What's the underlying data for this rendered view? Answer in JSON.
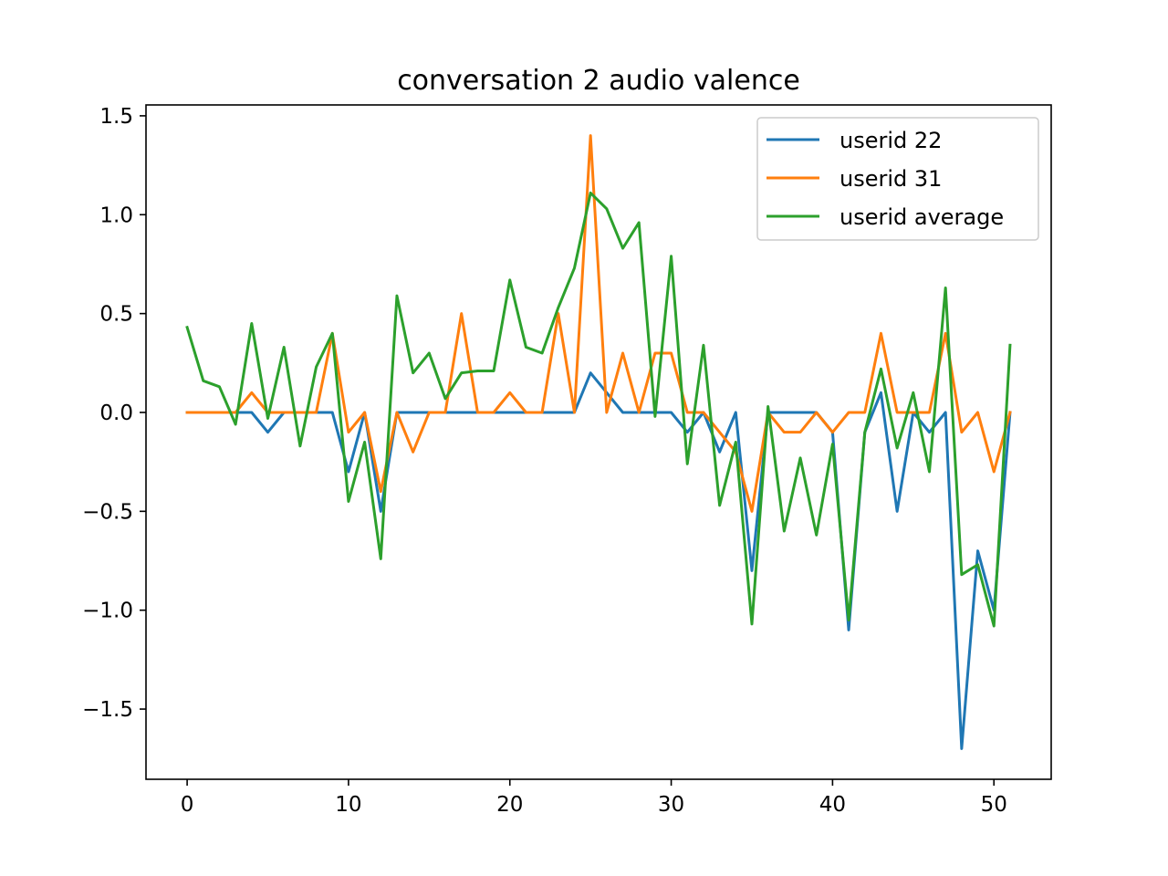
{
  "chart_data": {
    "type": "line",
    "title": "conversation 2 audio valence",
    "xlabel": "",
    "ylabel": "",
    "xlim": [
      -2.55,
      53.55
    ],
    "ylim": [
      -1.855,
      1.555
    ],
    "xticks": [
      0,
      10,
      20,
      30,
      40,
      50
    ],
    "yticks": [
      -1.5,
      -1.0,
      -0.5,
      0.0,
      0.5,
      1.0,
      1.5
    ],
    "ytick_labels": [
      "−1.5",
      "−1.0",
      "−0.5",
      "0.0",
      "0.5",
      "1.0",
      "1.5"
    ],
    "grid": false,
    "legend_position": "top-right",
    "x": [
      0,
      1,
      2,
      3,
      4,
      5,
      6,
      7,
      8,
      9,
      10,
      11,
      12,
      13,
      14,
      15,
      16,
      17,
      18,
      19,
      20,
      21,
      22,
      23,
      24,
      25,
      26,
      27,
      28,
      29,
      30,
      31,
      32,
      33,
      34,
      35,
      36,
      37,
      38,
      39,
      40,
      41,
      42,
      43,
      44,
      45,
      46,
      47,
      48,
      49,
      50,
      51
    ],
    "series": [
      {
        "name": "userid 22",
        "color": "#1f77b4",
        "values": [
          0,
          0,
          0,
          0,
          0,
          -0.1,
          0,
          0,
          0,
          0,
          -0.3,
          0,
          -0.5,
          0,
          0,
          0,
          0,
          0,
          0,
          0,
          0,
          0,
          0,
          0,
          0,
          0.2,
          0.1,
          0,
          0,
          0,
          0,
          -0.1,
          0,
          -0.2,
          0,
          -0.8,
          0,
          0,
          0,
          0,
          -0.1,
          -1.1,
          -0.1,
          0.1,
          -0.5,
          0,
          -0.1,
          0,
          -1.7,
          -0.7,
          -1.0,
          0
        ]
      },
      {
        "name": "userid 31",
        "color": "#ff7f0e",
        "values": [
          0,
          0,
          0,
          0,
          0.1,
          0,
          0,
          0,
          0,
          0.4,
          -0.1,
          0,
          -0.4,
          0,
          -0.2,
          0,
          0,
          0.5,
          0,
          0,
          0.1,
          0,
          0,
          0.5,
          0,
          1.4,
          0,
          0.3,
          0,
          0.3,
          0.3,
          0,
          0,
          -0.1,
          -0.2,
          -0.5,
          0,
          -0.1,
          -0.1,
          0,
          -0.1,
          0,
          0,
          0.4,
          0,
          0,
          0,
          0.4,
          -0.1,
          0,
          -0.3,
          0
        ]
      },
      {
        "name": "userid average",
        "color": "#2ca02c",
        "values": [
          0.43,
          0.16,
          0.13,
          -0.06,
          0.45,
          -0.03,
          0.33,
          -0.17,
          0.23,
          0.4,
          -0.45,
          -0.15,
          -0.74,
          0.59,
          0.2,
          0.3,
          0.07,
          0.2,
          0.21,
          0.21,
          0.67,
          0.33,
          0.3,
          0.53,
          0.73,
          1.11,
          1.03,
          0.83,
          0.96,
          -0.02,
          0.79,
          -0.26,
          0.34,
          -0.47,
          -0.15,
          -1.07,
          0.03,
          -0.6,
          -0.23,
          -0.62,
          -0.16,
          -1.05,
          -0.1,
          0.22,
          -0.18,
          0.1,
          -0.3,
          0.63,
          -0.82,
          -0.77,
          -1.08,
          0.34
        ]
      }
    ]
  }
}
